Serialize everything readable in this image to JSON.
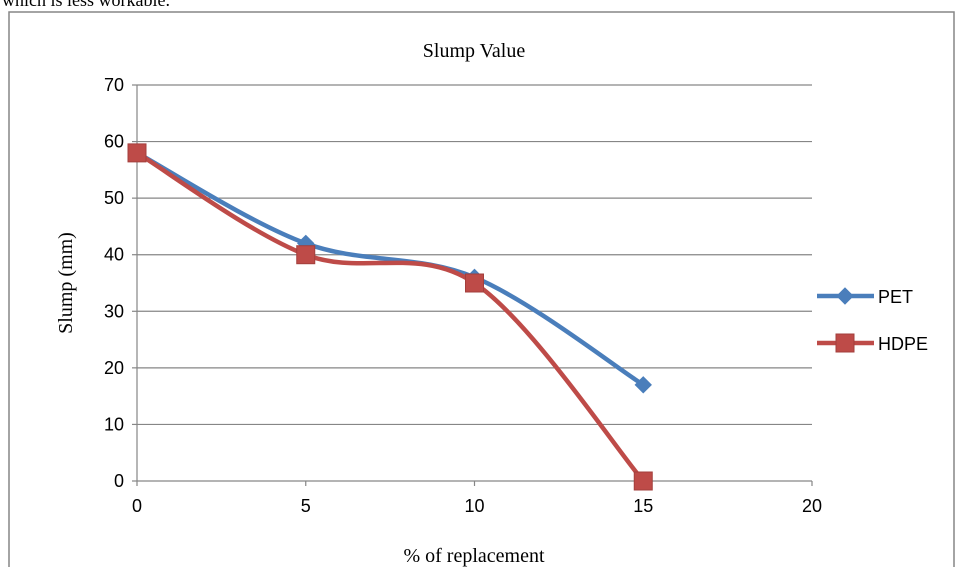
{
  "page_text": "which is less workable.",
  "chart_data": {
    "type": "line",
    "title": "Slump Value",
    "xlabel": "% of replacement",
    "ylabel": "Slump (mm)",
    "xlim": [
      0,
      20
    ],
    "ylim": [
      0,
      70
    ],
    "x_ticks": [
      0,
      5,
      10,
      15,
      20
    ],
    "y_ticks": [
      0,
      10,
      20,
      30,
      40,
      50,
      60,
      70
    ],
    "grid": "horizontal",
    "legend_position": "right",
    "smoothed": true,
    "series": [
      {
        "name": "PET",
        "marker": "diamond",
        "color": "#4a7ebb",
        "x": [
          0,
          5,
          10,
          15
        ],
        "y": [
          58,
          42,
          36,
          17
        ]
      },
      {
        "name": "HDPE",
        "marker": "square",
        "color": "#be4b48",
        "x": [
          0,
          5,
          10,
          15
        ],
        "y": [
          58,
          40,
          35,
          0
        ]
      }
    ]
  }
}
